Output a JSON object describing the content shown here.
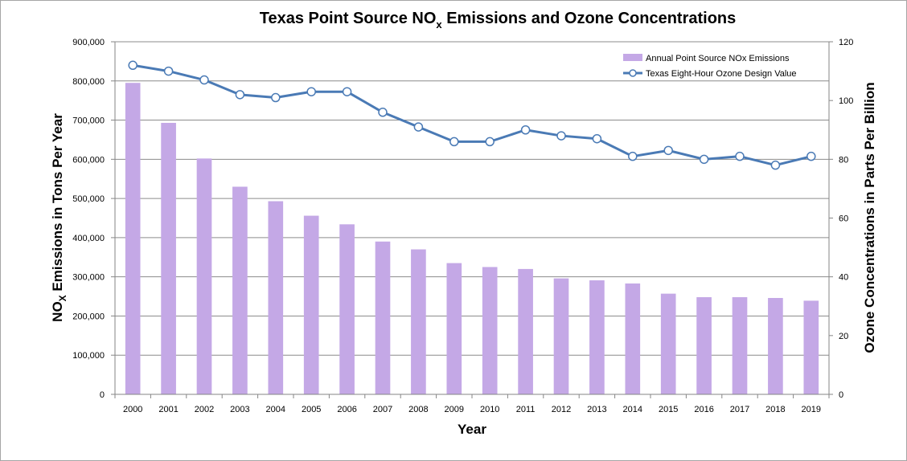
{
  "chart_data": {
    "type": "bar+line",
    "title": {
      "prefix": "Texas Point Source NO",
      "subscript": "x",
      "suffix": " Emissions and Ozone Concentrations"
    },
    "xlabel": "Year",
    "ylabel_left": {
      "prefix": "NO",
      "subscript": "X",
      "suffix": " Emissions  in Tons Per Year"
    },
    "ylabel_right": "Ozone  Concentrations  in Parts Per Billion",
    "categories": [
      "2000",
      "2001",
      "2002",
      "2003",
      "2004",
      "2005",
      "2006",
      "2007",
      "2008",
      "2009",
      "2010",
      "2011",
      "2012",
      "2013",
      "2014",
      "2015",
      "2016",
      "2017",
      "2018",
      "2019"
    ],
    "left_axis": {
      "ylim": [
        0,
        900000
      ],
      "ticks": [
        0,
        100000,
        200000,
        300000,
        400000,
        500000,
        600000,
        700000,
        800000,
        900000
      ],
      "tick_labels": [
        "0",
        "100,000",
        "200,000",
        "300,000",
        "400,000",
        "500,000",
        "600,000",
        "700,000",
        "800,000",
        "900,000"
      ]
    },
    "right_axis": {
      "ylim": [
        0,
        120
      ],
      "ticks": [
        0,
        20,
        40,
        60,
        80,
        100,
        120
      ],
      "tick_labels": [
        "0",
        "20",
        "40",
        "60",
        "80",
        "100",
        "120"
      ]
    },
    "grid": true,
    "legend_position": "top-right",
    "series": [
      {
        "name": "Annual Point Source NOx Emissions",
        "type": "bar",
        "axis": "left",
        "color": "#c4a8e6",
        "values": [
          795000,
          693000,
          602000,
          530000,
          493000,
          456000,
          434000,
          390000,
          370000,
          335000,
          325000,
          320000,
          296000,
          291000,
          283000,
          257000,
          248000,
          248000,
          246000,
          239000
        ]
      },
      {
        "name": "Texas Eight-Hour Ozone Design Value",
        "type": "line",
        "axis": "right",
        "color": "#4a7ab5",
        "values": [
          112,
          110,
          107,
          102,
          101,
          103,
          103,
          96,
          91,
          86,
          86,
          90,
          88,
          87,
          81,
          83,
          80,
          81,
          78,
          81
        ]
      }
    ]
  }
}
